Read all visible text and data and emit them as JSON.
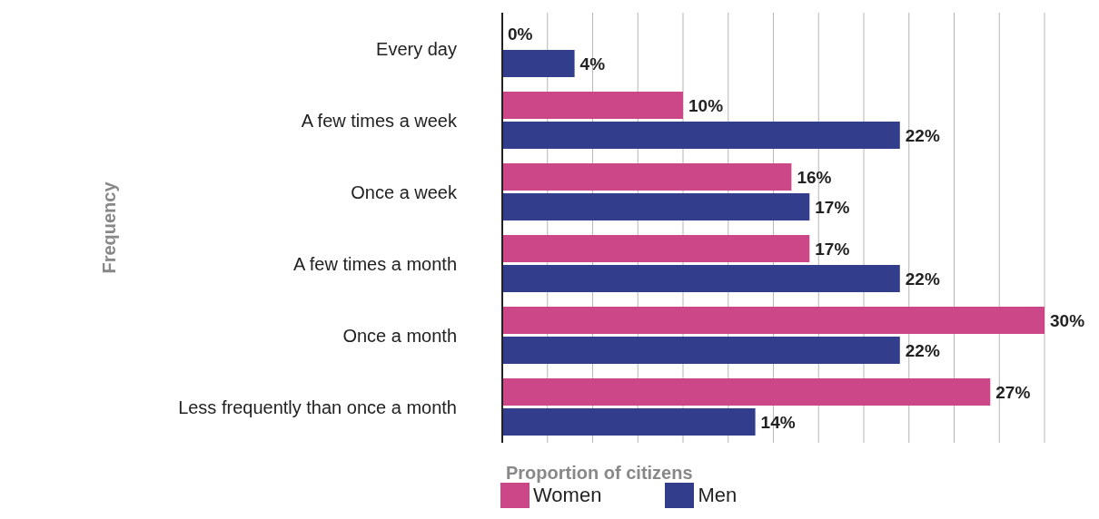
{
  "chart_data": {
    "type": "bar",
    "orientation": "horizontal",
    "xlabel": "Proportion of citizens",
    "ylabel": "Frequency",
    "categories": [
      "Every day",
      "A few times a week",
      "Once a week",
      "A few times a month",
      "Once a month",
      "Less frequently than once a month"
    ],
    "series": [
      {
        "name": "Women",
        "color": "#cc4787",
        "values": [
          0,
          10,
          16,
          17,
          30,
          27
        ],
        "value_labels": [
          "0%",
          "10%",
          "16%",
          "17%",
          "30%",
          "27%"
        ]
      },
      {
        "name": "Men",
        "color": "#323e8c",
        "values": [
          4,
          22,
          17,
          22,
          22,
          14
        ],
        "value_labels": [
          "4%",
          "22%",
          "17%",
          "22%",
          "22%",
          "14%"
        ]
      }
    ],
    "xlim": [
      0,
      30
    ],
    "xticks": [
      {
        "value": 0,
        "label": null
      },
      {
        "value": 2.5,
        "label": null
      },
      {
        "value": 5,
        "label": null
      },
      {
        "value": 7.5,
        "label": null
      },
      {
        "value": 10,
        "label": null
      },
      {
        "value": 12.5,
        "label": null
      },
      {
        "value": 15,
        "label": null
      },
      {
        "value": 17.5,
        "label": null
      },
      {
        "value": 20,
        "label": null
      },
      {
        "value": 22.5,
        "label": null
      },
      {
        "value": 25,
        "label": null
      },
      {
        "value": 27.5,
        "label": null
      },
      {
        "value": 30,
        "label": null
      }
    ],
    "grid": "x",
    "legend": "bottom left",
    "tick_labels": "y"
  }
}
